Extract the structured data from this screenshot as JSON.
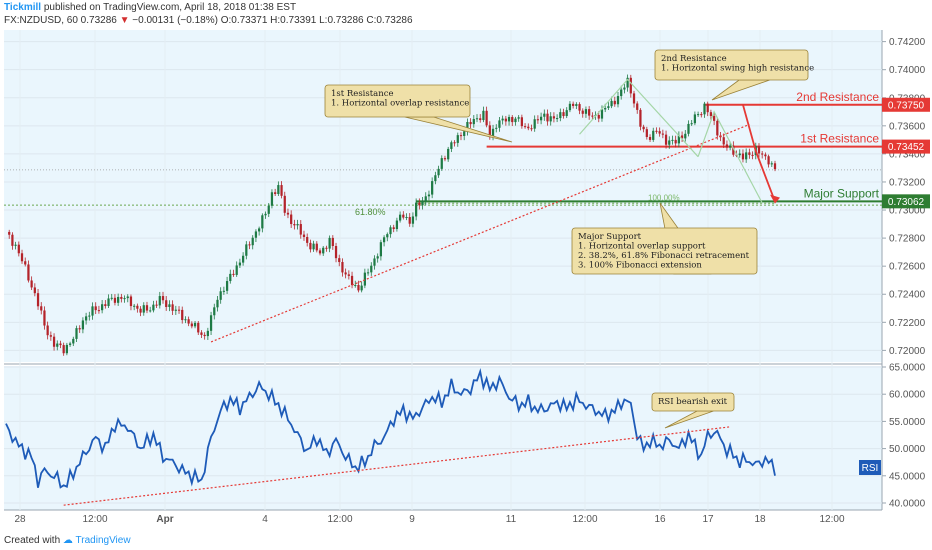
{
  "header": {
    "publisher": "Tickmill",
    "published_text": "published on TradingView.com, April 18, 2018 01:38 EST",
    "symbol_line_start": "FX:NZDUSD, 60  0.73286 ",
    "change_arrow": "▼",
    "change_text": "−0.00131 (−0.18%)",
    "ohlc_text": " O:0.73371 H:0.73391 L:0.73286 C:0.73286"
  },
  "footer": {
    "created_with": "Created with",
    "brand": "TradingView"
  },
  "annotations": {
    "first_resistance_box": [
      "1st Resistance",
      "1. Horizontal overlap resistance"
    ],
    "second_resistance_box": [
      "2nd Resistance",
      "1. Horizontal swing high resistance"
    ],
    "major_support_box": [
      "Major Support",
      "1. Horizontal overlap support",
      "2. 38.2%, 61.8% Fibonacci retracement",
      "3. 100% Fibonacci extension"
    ],
    "rsi_box": [
      "RSI bearish exit"
    ],
    "second_resistance_label": "2nd Resistance",
    "first_resistance_label": "1st Resistance",
    "major_support_label": "Major Support",
    "fib_618_label": "61.80%",
    "fib_100_label": "100.00%",
    "rsi_label": "RSI"
  },
  "colors": {
    "background": "#eaf6fd",
    "candle_up": "#1e7a45",
    "candle_down": "#b4232a",
    "resistance": "#e53935",
    "support": "#2e7d32",
    "rsi_line": "#1e5bb8",
    "trendline": "#e53935",
    "annotation_fill": "#efe0a8",
    "annotation_border": "#9a8238"
  },
  "chart_data": [
    {
      "type": "candlestick",
      "title": "FX:NZDUSD, 60",
      "ylim": [
        0.7196,
        0.7424
      ],
      "y_ticks": [
        "0.74200",
        "0.74000",
        "0.73800",
        "0.73600",
        "0.73400",
        "0.73200",
        "0.73000",
        "0.72800",
        "0.72600",
        "0.72400",
        "0.72200",
        "0.72000"
      ],
      "y_tick_values": [
        0.742,
        0.74,
        0.738,
        0.736,
        0.734,
        0.732,
        0.73,
        0.728,
        0.726,
        0.724,
        0.722,
        0.72
      ],
      "x_ticks": [
        "28",
        "12:00",
        "Apr",
        "4",
        "12:00",
        "9",
        "11",
        "12:00",
        "16",
        "17",
        "18",
        "12:00"
      ],
      "close_anchor_points": [
        [
          0,
          0.7283
        ],
        [
          3,
          0.7275
        ],
        [
          6,
          0.7258
        ],
        [
          9,
          0.724
        ],
        [
          12,
          0.7218
        ],
        [
          15,
          0.7204
        ],
        [
          18,
          0.7201
        ],
        [
          21,
          0.7208
        ],
        [
          24,
          0.7222
        ],
        [
          27,
          0.7228
        ],
        [
          30,
          0.7232
        ],
        [
          33,
          0.7236
        ],
        [
          36,
          0.7238
        ],
        [
          39,
          0.7234
        ],
        [
          42,
          0.7228
        ],
        [
          45,
          0.723
        ],
        [
          48,
          0.7236
        ],
        [
          51,
          0.7232
        ],
        [
          54,
          0.7226
        ],
        [
          57,
          0.722
        ],
        [
          60,
          0.7214
        ],
        [
          62,
          0.721
        ],
        [
          64,
          0.7222
        ],
        [
          66,
          0.7238
        ],
        [
          69,
          0.7248
        ],
        [
          72,
          0.726
        ],
        [
          75,
          0.7272
        ],
        [
          78,
          0.7285
        ],
        [
          81,
          0.7297
        ],
        [
          83,
          0.7312
        ],
        [
          85,
          0.7316
        ],
        [
          87,
          0.73
        ],
        [
          89,
          0.7292
        ],
        [
          92,
          0.7284
        ],
        [
          95,
          0.7274
        ],
        [
          98,
          0.727
        ],
        [
          101,
          0.7278
        ],
        [
          104,
          0.7262
        ],
        [
          107,
          0.725
        ],
        [
          110,
          0.7244
        ],
        [
          113,
          0.7256
        ],
        [
          116,
          0.727
        ],
        [
          119,
          0.7284
        ],
        [
          122,
          0.7292
        ],
        [
          124,
          0.7296
        ],
        [
          126,
          0.7292
        ],
        [
          128,
          0.7302
        ],
        [
          130,
          0.7306
        ],
        [
          133,
          0.7318
        ],
        [
          136,
          0.7336
        ],
        [
          139,
          0.7346
        ],
        [
          142,
          0.7355
        ],
        [
          145,
          0.7362
        ],
        [
          147,
          0.7366
        ],
        [
          149,
          0.7368
        ],
        [
          151,
          0.7352
        ],
        [
          153,
          0.7362
        ],
        [
          156,
          0.7364
        ],
        [
          159,
          0.7366
        ],
        [
          162,
          0.7358
        ],
        [
          165,
          0.7362
        ],
        [
          168,
          0.7368
        ],
        [
          171,
          0.7364
        ],
        [
          174,
          0.737
        ],
        [
          177,
          0.7375
        ],
        [
          180,
          0.7371
        ],
        [
          183,
          0.7366
        ],
        [
          186,
          0.737
        ],
        [
          189,
          0.7376
        ],
        [
          192,
          0.7384
        ],
        [
          194,
          0.7392
        ],
        [
          196,
          0.7378
        ],
        [
          198,
          0.736
        ],
        [
          200,
          0.7352
        ],
        [
          203,
          0.7356
        ],
        [
          206,
          0.735
        ],
        [
          209,
          0.7348
        ],
        [
          212,
          0.7356
        ],
        [
          215,
          0.7366
        ],
        [
          218,
          0.7374
        ],
        [
          221,
          0.7362
        ],
        [
          224,
          0.7346
        ],
        [
          227,
          0.7342
        ],
        [
          230,
          0.7337
        ],
        [
          232,
          0.734
        ],
        [
          234,
          0.7344
        ],
        [
          236,
          0.7338
        ],
        [
          238,
          0.7336
        ],
        [
          240,
          0.7329
        ]
      ],
      "second_resistance": 0.7375,
      "first_resistance": 0.73452,
      "major_support": 0.73062,
      "current_price_line": 0.73286,
      "fib_618_level": 0.73035,
      "fib_100_level": 0.73048,
      "price_labels": [
        "0.73750",
        "0.73452",
        "0.73062"
      ]
    },
    {
      "type": "line",
      "title": "RSI",
      "ylim": [
        40.0,
        65.0
      ],
      "y_ticks": [
        "65.0000",
        "60.0000",
        "55.0000",
        "50.0000",
        "45.0000",
        "40.0000"
      ],
      "y_tick_values": [
        65,
        60,
        55,
        50,
        45,
        40
      ],
      "anchor_points": [
        [
          0,
          54.0
        ],
        [
          4,
          50.5
        ],
        [
          8,
          48.5
        ],
        [
          10,
          44.0
        ],
        [
          12,
          46.0
        ],
        [
          16,
          44.5
        ],
        [
          18,
          43.0
        ],
        [
          20,
          44.5
        ],
        [
          24,
          48.5
        ],
        [
          28,
          52.0
        ],
        [
          31,
          50.0
        ],
        [
          34,
          54.5
        ],
        [
          38,
          54.0
        ],
        [
          42,
          50.0
        ],
        [
          46,
          52.5
        ],
        [
          49,
          48.5
        ],
        [
          52,
          47.5
        ],
        [
          55,
          46.0
        ],
        [
          58,
          45.0
        ],
        [
          61,
          44.0
        ],
        [
          64,
          52.0
        ],
        [
          67,
          57.0
        ],
        [
          70,
          59.0
        ],
        [
          73,
          57.5
        ],
        [
          76,
          59.5
        ],
        [
          79,
          61.5
        ],
        [
          82,
          60.0
        ],
        [
          85,
          58.0
        ],
        [
          88,
          55.5
        ],
        [
          91,
          52.5
        ],
        [
          94,
          49.5
        ],
        [
          97,
          52.0
        ],
        [
          100,
          49.0
        ],
        [
          103,
          51.5
        ],
        [
          106,
          48.5
        ],
        [
          109,
          46.5
        ],
        [
          112,
          47.5
        ],
        [
          115,
          50.5
        ],
        [
          118,
          52.0
        ],
        [
          121,
          55.5
        ],
        [
          124,
          57.0
        ],
        [
          127,
          55.5
        ],
        [
          130,
          57.5
        ],
        [
          133,
          59.5
        ],
        [
          136,
          58.5
        ],
        [
          139,
          61.5
        ],
        [
          142,
          60.0
        ],
        [
          145,
          61.0
        ],
        [
          148,
          63.5
        ],
        [
          151,
          61.0
        ],
        [
          154,
          62.5
        ],
        [
          157,
          59.5
        ],
        [
          160,
          58.0
        ],
        [
          163,
          58.5
        ],
        [
          166,
          57.0
        ],
        [
          169,
          57.5
        ],
        [
          172,
          58.5
        ],
        [
          175,
          57.5
        ],
        [
          178,
          59.0
        ],
        [
          181,
          58.0
        ],
        [
          184,
          57.0
        ],
        [
          187,
          56.0
        ],
        [
          190,
          57.0
        ],
        [
          193,
          59.0
        ],
        [
          195,
          58.0
        ],
        [
          197,
          52.5
        ],
        [
          199,
          50.0
        ],
        [
          201,
          51.5
        ],
        [
          204,
          50.5
        ],
        [
          207,
          51.5
        ],
        [
          210,
          50.0
        ],
        [
          213,
          52.5
        ],
        [
          215,
          50.5
        ],
        [
          217,
          48.5
        ],
        [
          219,
          52.5
        ],
        [
          221,
          53.0
        ],
        [
          223,
          52.0
        ],
        [
          225,
          49.5
        ],
        [
          227,
          49.0
        ],
        [
          229,
          47.5
        ],
        [
          231,
          48.0
        ],
        [
          234,
          47.0
        ],
        [
          237,
          48.0
        ],
        [
          240,
          46.5
        ]
      ],
      "trendline_points": [
        [
          18,
          39.6
        ],
        [
          226,
          54.0
        ]
      ]
    }
  ]
}
